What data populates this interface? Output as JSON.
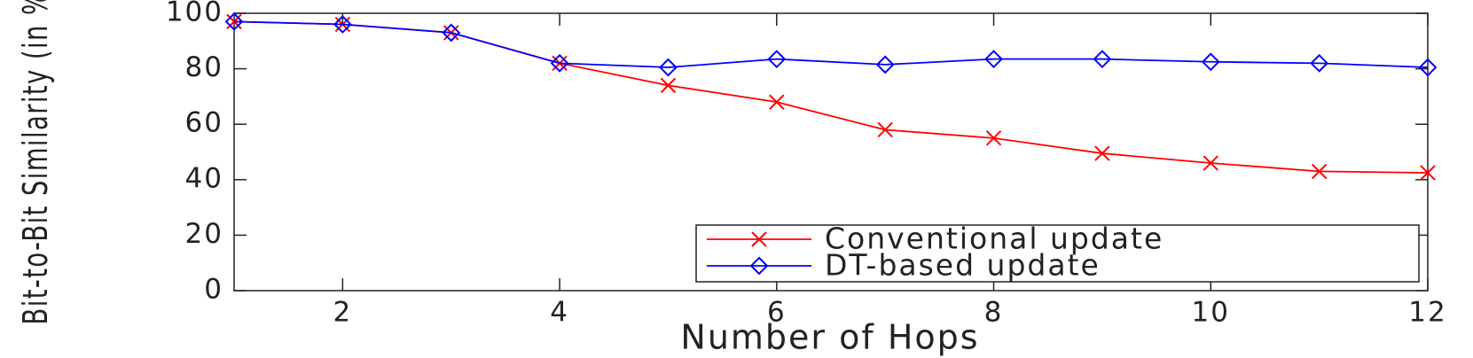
{
  "chart_data": {
    "type": "line",
    "xlabel": "Number of Hops",
    "ylabel": "Bit-to-Bit Similarity (in %)",
    "x": [
      1,
      2,
      3,
      4,
      5,
      6,
      7,
      8,
      9,
      10,
      11,
      12
    ],
    "series": [
      {
        "name": "Conventional update",
        "color": "#ff0000",
        "marker": "x",
        "values": [
          97,
          96,
          93,
          82,
          74,
          68,
          58,
          55,
          49.5,
          46,
          43,
          42.5
        ]
      },
      {
        "name": "DT-based update",
        "color": "#0000ff",
        "marker": "diamond",
        "values": [
          97,
          96,
          93,
          82,
          80.5,
          83.5,
          81.5,
          83.5,
          83.5,
          82.5,
          82,
          80.5
        ]
      }
    ],
    "xlim": [
      1,
      12
    ],
    "xticks": [
      2,
      4,
      6,
      8,
      10,
      12
    ],
    "ylim": [
      0,
      100
    ],
    "yticks": [
      0,
      20,
      40,
      60,
      80,
      100
    ],
    "legend": "lower right"
  }
}
